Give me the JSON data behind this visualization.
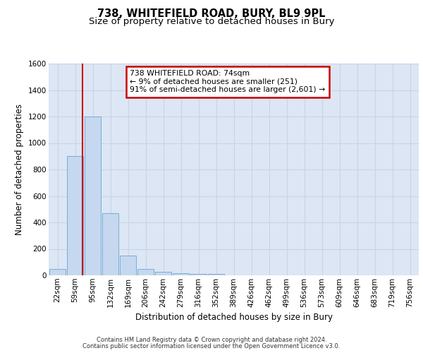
{
  "title": "738, WHITEFIELD ROAD, BURY, BL9 9PL",
  "subtitle": "Size of property relative to detached houses in Bury",
  "xlabel": "Distribution of detached houses by size in Bury",
  "ylabel": "Number of detached properties",
  "footnote1": "Contains HM Land Registry data © Crown copyright and database right 2024.",
  "footnote2": "Contains public sector information licensed under the Open Government Licence v3.0.",
  "bin_labels": [
    "22sqm",
    "59sqm",
    "95sqm",
    "132sqm",
    "169sqm",
    "206sqm",
    "242sqm",
    "279sqm",
    "316sqm",
    "352sqm",
    "389sqm",
    "426sqm",
    "462sqm",
    "499sqm",
    "536sqm",
    "573sqm",
    "609sqm",
    "646sqm",
    "683sqm",
    "719sqm",
    "756sqm"
  ],
  "bin_values": [
    50,
    900,
    1200,
    470,
    150,
    50,
    25,
    15,
    10,
    10,
    0,
    0,
    0,
    0,
    0,
    0,
    0,
    0,
    0,
    0,
    0
  ],
  "bar_color": "#c5d8ef",
  "bar_edgecolor": "#7aadd4",
  "property_line_x": 1.42,
  "annotation_text": "738 WHITEFIELD ROAD: 74sqm\n← 9% of detached houses are smaller (251)\n91% of semi-detached houses are larger (2,601) →",
  "annotation_box_color": "#ffffff",
  "annotation_box_edgecolor": "#cc0000",
  "vline_color": "#cc0000",
  "ylim": [
    0,
    1600
  ],
  "yticks": [
    0,
    200,
    400,
    600,
    800,
    1000,
    1200,
    1400,
    1600
  ],
  "grid_color": "#c8d4e8",
  "background_color": "#dce6f5",
  "title_fontsize": 10.5,
  "subtitle_fontsize": 9.5,
  "axis_fontsize": 8.5,
  "tick_fontsize": 7.5
}
